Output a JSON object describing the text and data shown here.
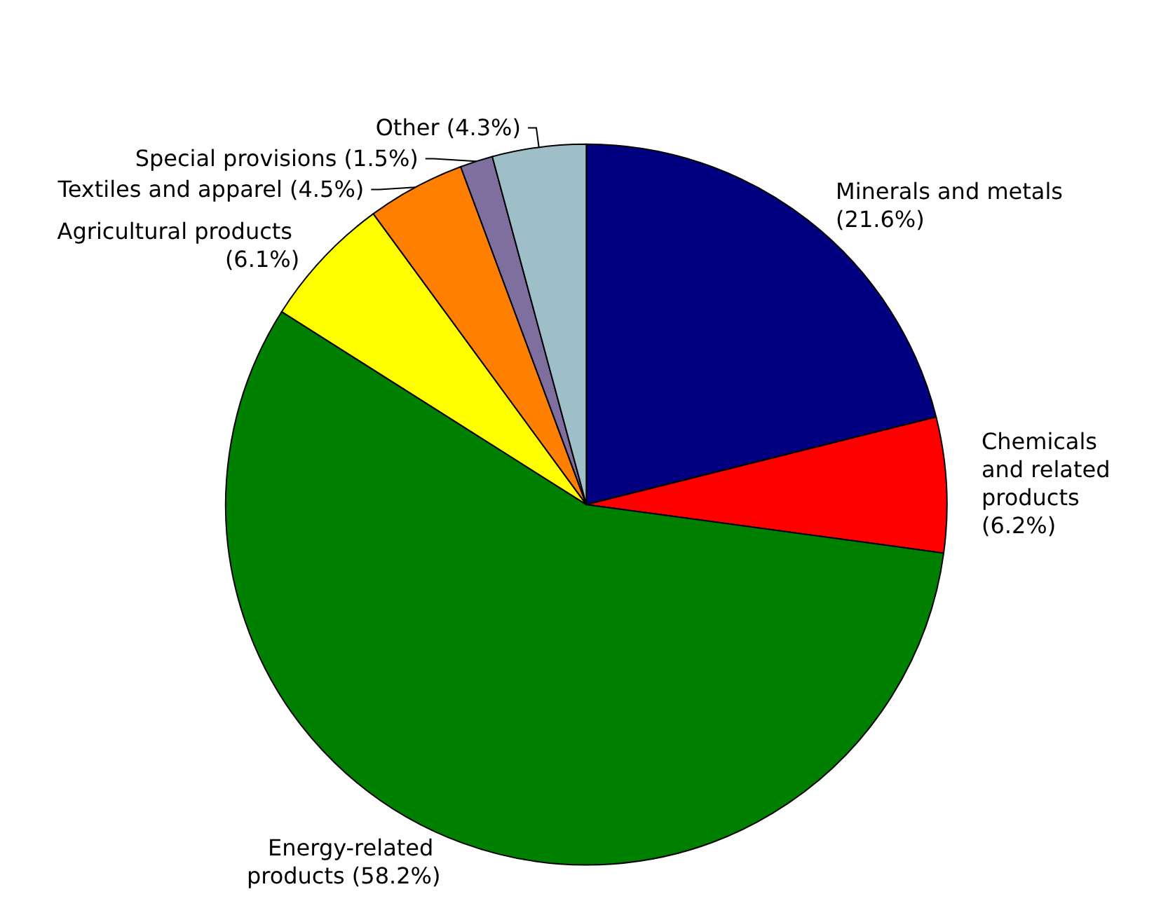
{
  "chart_data": {
    "type": "pie",
    "categories": [
      "Minerals and metals",
      "Chemicals and related products",
      "Energy-related products",
      "Agricultural products",
      "Textiles and apparel",
      "Special provisions",
      "Other"
    ],
    "values": [
      21.6,
      6.2,
      58.2,
      6.1,
      4.5,
      1.5,
      4.3
    ],
    "value_labels": [
      "(21.6%)",
      "(6.2%)",
      "(58.2%)",
      "(6.1%)",
      "(4.5%)",
      "(1.5%)",
      "(4.3%)"
    ],
    "colors": [
      "#000080",
      "#ff0000",
      "#008000",
      "#ffff00",
      "#ff8000",
      "#7f6f9f",
      "#9fbfc8"
    ],
    "legend": false
  }
}
